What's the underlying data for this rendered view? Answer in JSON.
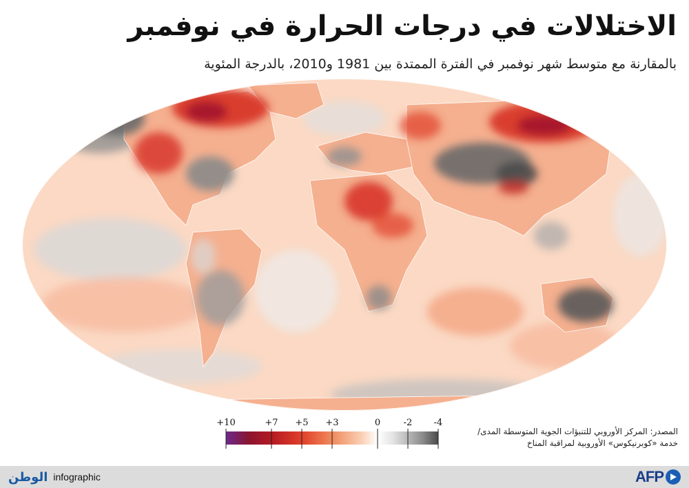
{
  "title": "الاختلالات في درجات الحرارة في نوفمبر",
  "subtitle": "بالمقارنة مع متوسط شهر نوفمبر في الفترة الممتدة بين 1981 و2010، بالدرجة المئوية",
  "legend": {
    "ticks": [
      {
        "label": "+10",
        "value": 10
      },
      {
        "label": "+7",
        "value": 7
      },
      {
        "label": "+5",
        "value": 5
      },
      {
        "label": "+3",
        "value": 3
      },
      {
        "label": "0",
        "value": 0
      },
      {
        "label": "-2",
        "value": -2
      },
      {
        "label": "-4",
        "value": -4
      }
    ],
    "range": [
      -4,
      10
    ],
    "stops": [
      {
        "value": 10,
        "color": "#6b2a8e"
      },
      {
        "value": 8.5,
        "color": "#8a1530"
      },
      {
        "value": 7,
        "color": "#b51a22"
      },
      {
        "value": 5,
        "color": "#e0402a"
      },
      {
        "value": 3,
        "color": "#f08a5c"
      },
      {
        "value": 1,
        "color": "#fad2b8"
      },
      {
        "value": 0,
        "color": "#ffffff"
      },
      {
        "value": -1,
        "color": "#e4e4e4"
      },
      {
        "value": -2,
        "color": "#b8b8b8"
      },
      {
        "value": -3,
        "color": "#8a8a8a"
      },
      {
        "value": -4,
        "color": "#4a4a4a"
      }
    ]
  },
  "source": {
    "line1": "المصدر: المركز الأوروبي للتنبؤات الجوية المتوسطة المدى/",
    "line2": "خدمة «كوبرنيكوس» الأوروبية لمراقبة المناخ"
  },
  "footer": {
    "brand_ar": "الوطن",
    "brand_en": "infographic",
    "agency": "AFP"
  },
  "colors": {
    "ocean_warm": "#fbd9c4",
    "land_warm": "#f5a98a",
    "strong_warm": "#d63026",
    "extreme_warm": "#a0152a",
    "cool": "#9b9b9b",
    "cold": "#5a5a5a",
    "footer_bg": "#dcdcdc"
  }
}
